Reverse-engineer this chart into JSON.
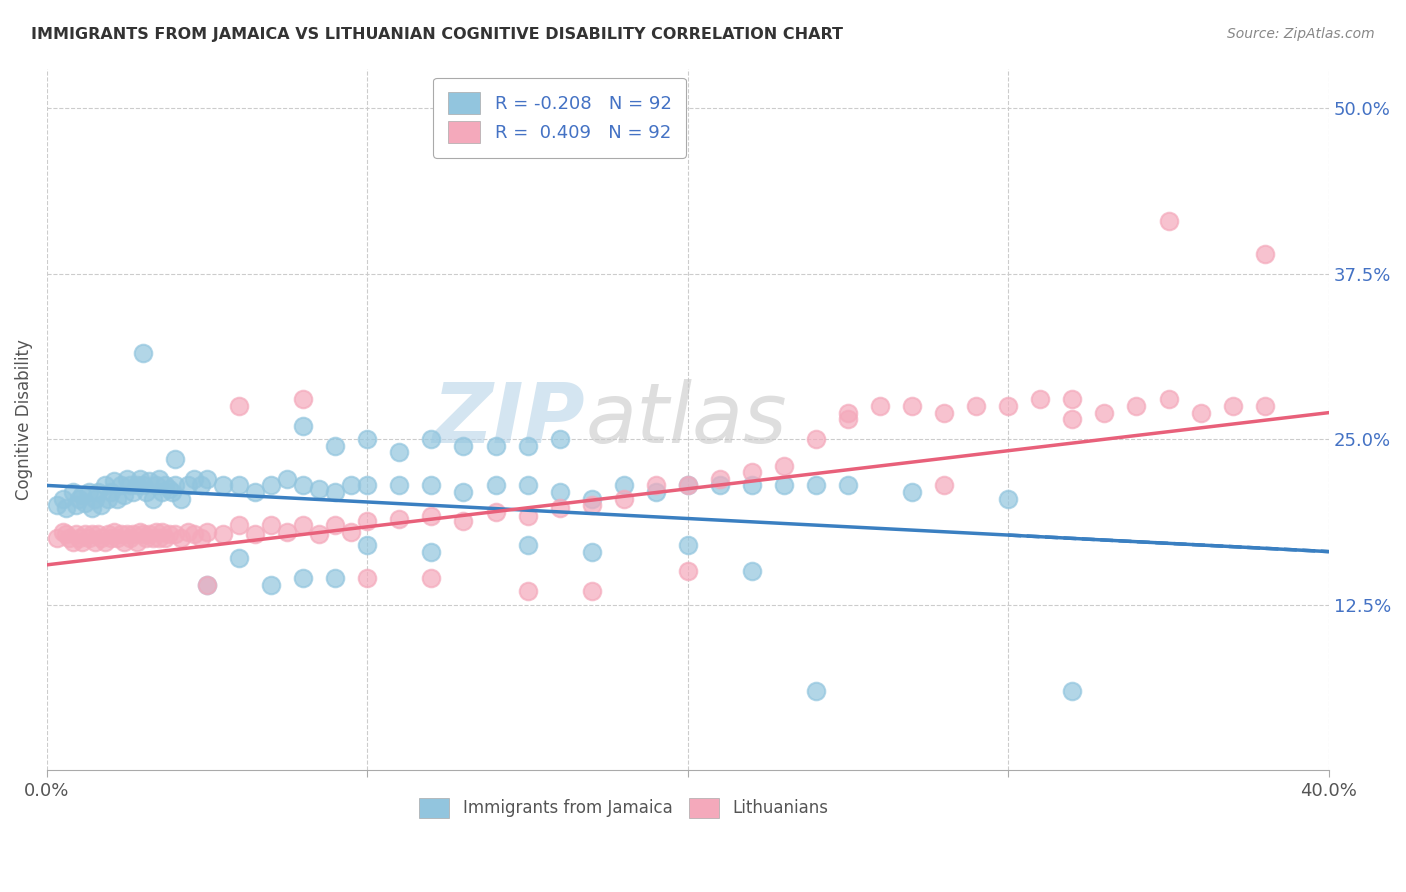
{
  "title": "IMMIGRANTS FROM JAMAICA VS LITHUANIAN COGNITIVE DISABILITY CORRELATION CHART",
  "source": "Source: ZipAtlas.com",
  "ylabel": "Cognitive Disability",
  "ytick_values": [
    0.125,
    0.25,
    0.375,
    0.5
  ],
  "ytick_labels": [
    "12.5%",
    "25.0%",
    "37.5%",
    "50.0%"
  ],
  "xlim": [
    0.0,
    0.4
  ],
  "ylim": [
    0.0,
    0.53
  ],
  "color_blue": "#92c5de",
  "color_pink": "#f4a9bb",
  "color_blue_line": "#3a7fc1",
  "color_pink_line": "#e8607a",
  "legend_label1": "Immigrants from Jamaica",
  "legend_label2": "Lithuanians",
  "legend_text_color": "#4472c4",
  "blue_line_x0": 0.0,
  "blue_line_x1": 0.4,
  "blue_line_y0": 0.215,
  "blue_line_y1": 0.165,
  "pink_line_x0": 0.0,
  "pink_line_x1": 0.4,
  "pink_line_y0": 0.155,
  "pink_line_y1": 0.27,
  "blue_x": [
    0.003,
    0.005,
    0.006,
    0.008,
    0.009,
    0.01,
    0.011,
    0.012,
    0.013,
    0.014,
    0.015,
    0.016,
    0.017,
    0.018,
    0.019,
    0.02,
    0.021,
    0.022,
    0.023,
    0.024,
    0.025,
    0.026,
    0.027,
    0.028,
    0.029,
    0.03,
    0.031,
    0.032,
    0.033,
    0.034,
    0.035,
    0.036,
    0.037,
    0.038,
    0.039,
    0.04,
    0.042,
    0.044,
    0.046,
    0.048,
    0.05,
    0.055,
    0.06,
    0.065,
    0.07,
    0.075,
    0.08,
    0.085,
    0.09,
    0.095,
    0.1,
    0.11,
    0.12,
    0.13,
    0.14,
    0.15,
    0.16,
    0.17,
    0.18,
    0.19,
    0.2,
    0.21,
    0.22,
    0.23,
    0.24,
    0.25,
    0.08,
    0.09,
    0.1,
    0.11,
    0.12,
    0.13,
    0.14,
    0.15,
    0.16,
    0.1,
    0.12,
    0.15,
    0.17,
    0.2,
    0.22,
    0.24,
    0.27,
    0.3,
    0.32,
    0.03,
    0.04,
    0.05,
    0.06,
    0.07,
    0.08,
    0.09
  ],
  "blue_y": [
    0.2,
    0.205,
    0.198,
    0.21,
    0.2,
    0.205,
    0.208,
    0.202,
    0.21,
    0.198,
    0.205,
    0.21,
    0.2,
    0.215,
    0.205,
    0.21,
    0.218,
    0.205,
    0.215,
    0.208,
    0.22,
    0.215,
    0.21,
    0.215,
    0.22,
    0.215,
    0.21,
    0.218,
    0.205,
    0.215,
    0.22,
    0.21,
    0.215,
    0.212,
    0.21,
    0.215,
    0.205,
    0.215,
    0.22,
    0.215,
    0.22,
    0.215,
    0.215,
    0.21,
    0.215,
    0.22,
    0.215,
    0.212,
    0.21,
    0.215,
    0.215,
    0.215,
    0.215,
    0.21,
    0.215,
    0.215,
    0.21,
    0.205,
    0.215,
    0.21,
    0.215,
    0.215,
    0.215,
    0.215,
    0.215,
    0.215,
    0.26,
    0.245,
    0.25,
    0.24,
    0.25,
    0.245,
    0.245,
    0.245,
    0.25,
    0.17,
    0.165,
    0.17,
    0.165,
    0.17,
    0.15,
    0.06,
    0.21,
    0.205,
    0.06,
    0.315,
    0.235,
    0.14,
    0.16,
    0.14,
    0.145,
    0.145
  ],
  "pink_x": [
    0.003,
    0.005,
    0.006,
    0.007,
    0.008,
    0.009,
    0.01,
    0.011,
    0.012,
    0.013,
    0.014,
    0.015,
    0.016,
    0.017,
    0.018,
    0.019,
    0.02,
    0.021,
    0.022,
    0.023,
    0.024,
    0.025,
    0.026,
    0.027,
    0.028,
    0.029,
    0.03,
    0.031,
    0.032,
    0.033,
    0.034,
    0.035,
    0.036,
    0.037,
    0.038,
    0.04,
    0.042,
    0.044,
    0.046,
    0.048,
    0.05,
    0.055,
    0.06,
    0.065,
    0.07,
    0.075,
    0.08,
    0.085,
    0.09,
    0.095,
    0.1,
    0.11,
    0.12,
    0.13,
    0.14,
    0.15,
    0.16,
    0.17,
    0.18,
    0.19,
    0.2,
    0.21,
    0.22,
    0.23,
    0.24,
    0.25,
    0.26,
    0.27,
    0.28,
    0.29,
    0.3,
    0.31,
    0.32,
    0.33,
    0.34,
    0.35,
    0.36,
    0.37,
    0.38,
    0.05,
    0.1,
    0.12,
    0.15,
    0.17,
    0.2,
    0.25,
    0.28,
    0.32,
    0.35,
    0.38,
    0.06,
    0.08
  ],
  "pink_y": [
    0.175,
    0.18,
    0.178,
    0.175,
    0.172,
    0.178,
    0.175,
    0.172,
    0.178,
    0.175,
    0.178,
    0.172,
    0.178,
    0.175,
    0.172,
    0.178,
    0.175,
    0.18,
    0.175,
    0.178,
    0.172,
    0.178,
    0.175,
    0.178,
    0.172,
    0.18,
    0.178,
    0.175,
    0.178,
    0.175,
    0.18,
    0.175,
    0.18,
    0.175,
    0.178,
    0.178,
    0.175,
    0.18,
    0.178,
    0.175,
    0.18,
    0.178,
    0.185,
    0.178,
    0.185,
    0.18,
    0.185,
    0.178,
    0.185,
    0.18,
    0.188,
    0.19,
    0.192,
    0.188,
    0.195,
    0.192,
    0.198,
    0.2,
    0.205,
    0.215,
    0.215,
    0.22,
    0.225,
    0.23,
    0.25,
    0.265,
    0.275,
    0.275,
    0.27,
    0.275,
    0.275,
    0.28,
    0.28,
    0.27,
    0.275,
    0.28,
    0.27,
    0.275,
    0.275,
    0.14,
    0.145,
    0.145,
    0.135,
    0.135,
    0.15,
    0.27,
    0.215,
    0.265,
    0.415,
    0.39,
    0.275,
    0.28
  ]
}
